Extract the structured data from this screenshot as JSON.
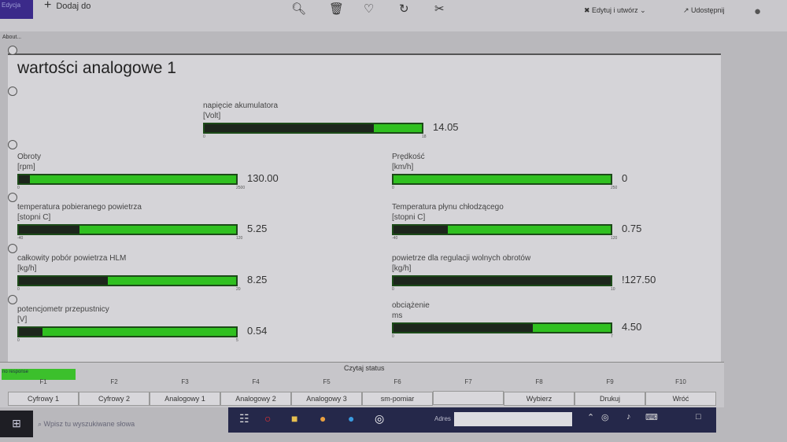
{
  "viewer": {
    "brand": "Edycja",
    "add_label": "Dodaj do",
    "edit_label": "Edytuj i utwórz",
    "share_label": "Udostępnij",
    "about": "About..."
  },
  "page": {
    "title": "wartości analogowe 1"
  },
  "gauges": [
    {
      "id": "battery",
      "name": "napięcie akumulatora",
      "unit": "[Volt]",
      "value": "14.05",
      "min": "0",
      "max": "18",
      "fill": 0.78
    },
    {
      "id": "rpm",
      "name": "Obroty",
      "unit": "[rpm]",
      "value": "130.00",
      "min": "0",
      "max": "2500",
      "fill": 0.052
    },
    {
      "id": "speed",
      "name": "Prędkość",
      "unit": "[km/h]",
      "value": "0",
      "min": "0",
      "max": "250",
      "fill": 0
    },
    {
      "id": "intake-temp",
      "name": "temperatura pobieranego powietrza",
      "unit": "[stopni C]",
      "value": "5.25",
      "min": "-40",
      "max": "120",
      "fill": 0.28
    },
    {
      "id": "coolant-temp",
      "name": "Temperatura płynu chłodzącego",
      "unit": "[stopni C]",
      "value": "0.75",
      "min": "-40",
      "max": "120",
      "fill": 0.25
    },
    {
      "id": "hlm",
      "name": "całkowity pobór powietrza HLM",
      "unit": "[kg/h]",
      "value": "8.25",
      "min": "0",
      "max": "20",
      "fill": 0.41
    },
    {
      "id": "idle-air",
      "name": "powietrze dla regulacji wolnych obrotów",
      "unit": "[kg/h]",
      "value": "!127.50",
      "min": "0",
      "max": "10",
      "fill": 1.0
    },
    {
      "id": "throttle",
      "name": "potencjometr przepustnicy",
      "unit": "[V]",
      "value": "0.54",
      "min": "0",
      "max": "5",
      "fill": 0.108
    },
    {
      "id": "load",
      "name": "obciążenie",
      "unit": "ms",
      "value": "4.50",
      "min": "0",
      "max": "7",
      "fill": 0.64
    }
  ],
  "status": {
    "indicator": "no response",
    "read_status": "Czytaj status"
  },
  "fkeys": [
    {
      "key": "F1",
      "label": "Cyfrowy 1"
    },
    {
      "key": "F2",
      "label": "Cyfrowy 2"
    },
    {
      "key": "F3",
      "label": "Analogowy 1"
    },
    {
      "key": "F4",
      "label": "Analogowy 2"
    },
    {
      "key": "F5",
      "label": "Analogowy 3"
    },
    {
      "key": "F6",
      "label": "sm-pomiar"
    },
    {
      "key": "F7",
      "label": ""
    },
    {
      "key": "F8",
      "label": "Wybierz"
    },
    {
      "key": "F9",
      "label": "Drukuj"
    },
    {
      "key": "F10",
      "label": "Wróć"
    }
  ],
  "taskbar": {
    "search_placeholder": "Wpisz tu wyszukiwane słowa",
    "address_label": "Adres"
  },
  "colors": {
    "bar_bg": "#30c020",
    "bar_fill": "#1d261c",
    "taskbar": "#25284a"
  }
}
